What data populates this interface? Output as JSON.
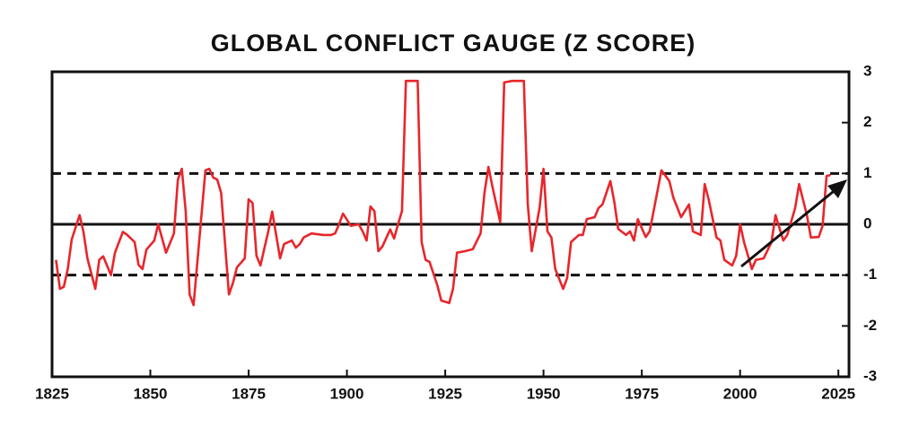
{
  "chart_data": {
    "type": "line",
    "title": "GLOBAL CONFLICT GAUGE (Z SCORE)",
    "color": "#e8262b",
    "x": [
      1826,
      1827,
      1828,
      1829,
      1830,
      1832,
      1833,
      1834,
      1836,
      1837,
      1838,
      1840,
      1841,
      1843,
      1844,
      1846,
      1847,
      1848,
      1849,
      1851,
      1852,
      1853,
      1854,
      1856,
      1857,
      1858,
      1859,
      1860,
      1861,
      1863,
      1864,
      1865,
      1866,
      1867,
      1868,
      1870,
      1871,
      1872,
      1874,
      1875,
      1876,
      1877,
      1878,
      1880,
      1881,
      1882,
      1883,
      1884,
      1886,
      1887,
      1888,
      1889,
      1891,
      1894,
      1896,
      1897,
      1898,
      1899,
      1900,
      1901,
      1903,
      1904,
      1905,
      1906,
      1907,
      1908,
      1909,
      1911,
      1912,
      1913,
      1914,
      1915,
      1918,
      1919,
      1920,
      1921,
      1923,
      1924,
      1926,
      1927,
      1928,
      1930,
      1932,
      1934,
      1935,
      1936,
      1937,
      1939,
      1940,
      1942,
      1945,
      1946,
      1947,
      1949,
      1950,
      1951,
      1952,
      1953,
      1955,
      1956,
      1957,
      1959,
      1960,
      1961,
      1963,
      1964,
      1965,
      1967,
      1968,
      1969,
      1971,
      1972,
      1973,
      1974,
      1976,
      1977,
      1978,
      1980,
      1982,
      1983,
      1985,
      1987,
      1988,
      1990,
      1991,
      1992,
      1994,
      1995,
      1996,
      1998,
      1999,
      2000,
      2001,
      2003,
      2004,
      2006,
      2008,
      2009,
      2011,
      2012,
      2014,
      2015,
      2017,
      2018,
      2020,
      2021,
      2022,
      2023
    ],
    "values": [
      -0.7,
      -1.27,
      -1.23,
      -0.88,
      -0.3,
      0.18,
      -0.15,
      -0.67,
      -1.27,
      -0.7,
      -0.63,
      -1.0,
      -0.56,
      -0.15,
      -0.2,
      -0.35,
      -0.8,
      -0.88,
      -0.5,
      -0.32,
      0,
      -0.28,
      -0.56,
      -0.18,
      0.88,
      1.09,
      0.26,
      -1.38,
      -1.59,
      0.18,
      1.06,
      1.09,
      0.92,
      0.88,
      0.62,
      -1.38,
      -1.16,
      -0.85,
      -0.67,
      0.49,
      0.42,
      -0.62,
      -0.81,
      -0.14,
      0.25,
      -0.21,
      -0.67,
      -0.39,
      -0.32,
      -0.46,
      -0.39,
      -0.26,
      -0.18,
      -0.21,
      -0.21,
      -0.18,
      0,
      0.21,
      0.09,
      -0.03,
      0,
      -0.14,
      -0.32,
      0.35,
      0.26,
      -0.53,
      -0.44,
      -0.1,
      -0.28,
      0,
      0.26,
      2.82,
      2.82,
      -0.35,
      -0.7,
      -0.74,
      -1.2,
      -1.5,
      -1.55,
      -1.27,
      -0.56,
      -0.53,
      -0.49,
      -0.18,
      0.63,
      1.13,
      0.74,
      0.04,
      2.79,
      2.82,
      2.82,
      0.39,
      -0.53,
      0.32,
      1.09,
      -0.14,
      -0.26,
      -0.88,
      -1.27,
      -1.06,
      -0.35,
      -0.21,
      -0.21,
      0.1,
      0.14,
      0.32,
      0.39,
      0.85,
      0.44,
      -0.09,
      -0.21,
      -0.14,
      -0.32,
      0.1,
      -0.25,
      -0.14,
      0.26,
      1.06,
      0.85,
      0.53,
      0.14,
      0.39,
      -0.14,
      -0.21,
      0.79,
      0.49,
      -0.26,
      -0.32,
      -0.7,
      -0.81,
      -0.62,
      0,
      -0.35,
      -0.88,
      -0.7,
      -0.67,
      -0.35,
      0.18,
      -0.32,
      -0.21,
      0.32,
      0.79,
      0.18,
      -0.26,
      -0.25,
      -0.03,
      0.95,
      0.97
    ],
    "xlim": [
      1825,
      2027.7
    ],
    "xticks": [
      1825,
      1850,
      1875,
      1900,
      1925,
      1950,
      1975,
      2000,
      2025
    ],
    "ylim": [
      -3,
      3
    ],
    "yticks": [
      -3,
      -2,
      -1,
      0,
      1,
      2,
      3
    ],
    "reference_lines": [
      {
        "value": 1,
        "style": "dashed"
      },
      {
        "value": 0,
        "style": "solid"
      },
      {
        "value": -1,
        "style": "dashed"
      }
    ]
  }
}
